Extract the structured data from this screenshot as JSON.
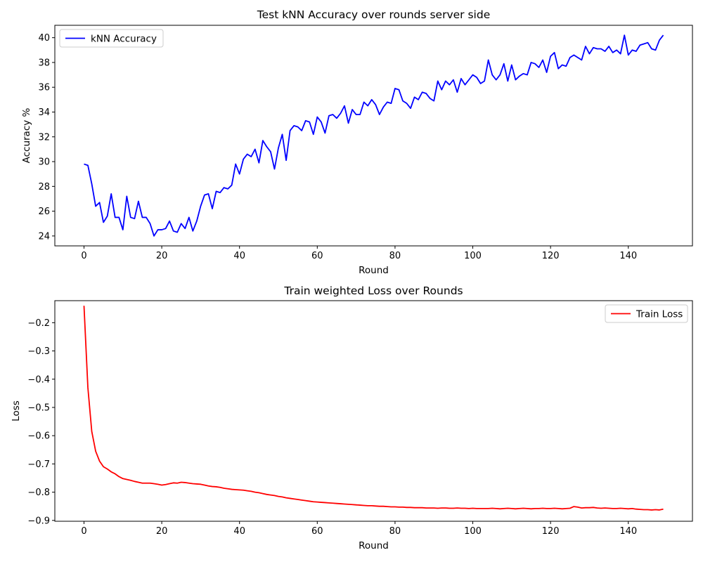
{
  "chart_data": [
    {
      "type": "line",
      "title": "Test kNN Accuracy over rounds server side",
      "xlabel": "Round",
      "ylabel": "Accuracy %",
      "xlim": [
        -7.5,
        156.5
      ],
      "ylim": [
        23.2,
        41.0
      ],
      "xticks": [
        0,
        20,
        40,
        60,
        80,
        100,
        120,
        140
      ],
      "yticks": [
        24,
        26,
        28,
        30,
        32,
        34,
        36,
        38,
        40
      ],
      "legend": "upper-left",
      "grid": false,
      "series": [
        {
          "name": "kNN Accuracy",
          "color": "#0000ff",
          "x_start": 0,
          "values": [
            29.8,
            29.7,
            28.2,
            26.4,
            26.7,
            25.1,
            25.6,
            27.4,
            25.5,
            25.5,
            24.5,
            27.2,
            25.5,
            25.4,
            26.8,
            25.5,
            25.5,
            25.0,
            24.0,
            24.5,
            24.5,
            24.6,
            25.2,
            24.4,
            24.3,
            25.0,
            24.6,
            25.5,
            24.4,
            25.2,
            26.4,
            27.3,
            27.4,
            26.2,
            27.6,
            27.5,
            27.9,
            27.8,
            28.1,
            29.8,
            29.0,
            30.2,
            30.6,
            30.4,
            31.0,
            29.9,
            31.7,
            31.2,
            30.8,
            29.4,
            31.1,
            32.2,
            30.1,
            32.5,
            32.9,
            32.8,
            32.5,
            33.3,
            33.2,
            32.2,
            33.6,
            33.2,
            32.3,
            33.7,
            33.8,
            33.5,
            33.9,
            34.5,
            33.1,
            34.2,
            33.8,
            33.8,
            34.8,
            34.5,
            35.0,
            34.6,
            33.8,
            34.4,
            34.8,
            34.7,
            35.9,
            35.8,
            34.9,
            34.7,
            34.3,
            35.2,
            35.0,
            35.6,
            35.5,
            35.1,
            34.9,
            36.5,
            35.8,
            36.5,
            36.2,
            36.6,
            35.6,
            36.7,
            36.2,
            36.6,
            37.0,
            36.8,
            36.3,
            36.5,
            38.2,
            37.0,
            36.6,
            37.0,
            37.9,
            36.5,
            37.8,
            36.6,
            36.9,
            37.1,
            37.0,
            38.0,
            37.9,
            37.6,
            38.2,
            37.2,
            38.5,
            38.8,
            37.5,
            37.8,
            37.7,
            38.4,
            38.6,
            38.4,
            38.2,
            39.3,
            38.7,
            39.2,
            39.1,
            39.1,
            38.9,
            39.3,
            38.8,
            39.0,
            38.7,
            40.2,
            38.6,
            39.0,
            38.9,
            39.4,
            39.5,
            39.6,
            39.1,
            39.0,
            39.8,
            40.2
          ]
        }
      ]
    },
    {
      "type": "line",
      "title": "Train weighted Loss over Rounds",
      "xlabel": "Round",
      "ylabel": "Loss",
      "xlim": [
        -7.5,
        156.5
      ],
      "ylim": [
        -0.903,
        -0.122
      ],
      "xticks": [
        0,
        20,
        40,
        60,
        80,
        100,
        120,
        140
      ],
      "yticks": [
        -0.2,
        -0.3,
        -0.4,
        -0.5,
        -0.6,
        -0.7,
        -0.8,
        -0.9
      ],
      "legend": "upper-right",
      "grid": false,
      "series": [
        {
          "name": "Train Loss",
          "color": "#ff0000",
          "x_start": 0,
          "values": [
            -0.14,
            -0.43,
            -0.585,
            -0.655,
            -0.69,
            -0.71,
            -0.718,
            -0.728,
            -0.735,
            -0.745,
            -0.752,
            -0.755,
            -0.758,
            -0.762,
            -0.765,
            -0.768,
            -0.768,
            -0.768,
            -0.77,
            -0.772,
            -0.775,
            -0.773,
            -0.77,
            -0.767,
            -0.768,
            -0.765,
            -0.766,
            -0.768,
            -0.77,
            -0.771,
            -0.772,
            -0.775,
            -0.778,
            -0.78,
            -0.781,
            -0.783,
            -0.786,
            -0.788,
            -0.79,
            -0.791,
            -0.792,
            -0.793,
            -0.795,
            -0.797,
            -0.8,
            -0.802,
            -0.805,
            -0.808,
            -0.81,
            -0.812,
            -0.815,
            -0.817,
            -0.82,
            -0.822,
            -0.824,
            -0.826,
            -0.828,
            -0.83,
            -0.832,
            -0.834,
            -0.835,
            -0.836,
            -0.837,
            -0.838,
            -0.839,
            -0.84,
            -0.841,
            -0.842,
            -0.843,
            -0.844,
            -0.845,
            -0.846,
            -0.847,
            -0.848,
            -0.848,
            -0.849,
            -0.85,
            -0.85,
            -0.851,
            -0.852,
            -0.852,
            -0.853,
            -0.853,
            -0.854,
            -0.854,
            -0.855,
            -0.855,
            -0.855,
            -0.856,
            -0.856,
            -0.856,
            -0.857,
            -0.856,
            -0.856,
            -0.857,
            -0.857,
            -0.856,
            -0.857,
            -0.857,
            -0.858,
            -0.857,
            -0.858,
            -0.858,
            -0.858,
            -0.858,
            -0.857,
            -0.858,
            -0.859,
            -0.858,
            -0.857,
            -0.858,
            -0.859,
            -0.858,
            -0.857,
            -0.858,
            -0.859,
            -0.858,
            -0.858,
            -0.857,
            -0.858,
            -0.858,
            -0.857,
            -0.858,
            -0.859,
            -0.858,
            -0.857,
            -0.851,
            -0.853,
            -0.856,
            -0.855,
            -0.855,
            -0.854,
            -0.856,
            -0.857,
            -0.856,
            -0.857,
            -0.858,
            -0.858,
            -0.857,
            -0.858,
            -0.859,
            -0.858,
            -0.86,
            -0.861,
            -0.862,
            -0.862,
            -0.863,
            -0.862,
            -0.863,
            -0.86
          ]
        }
      ]
    }
  ]
}
